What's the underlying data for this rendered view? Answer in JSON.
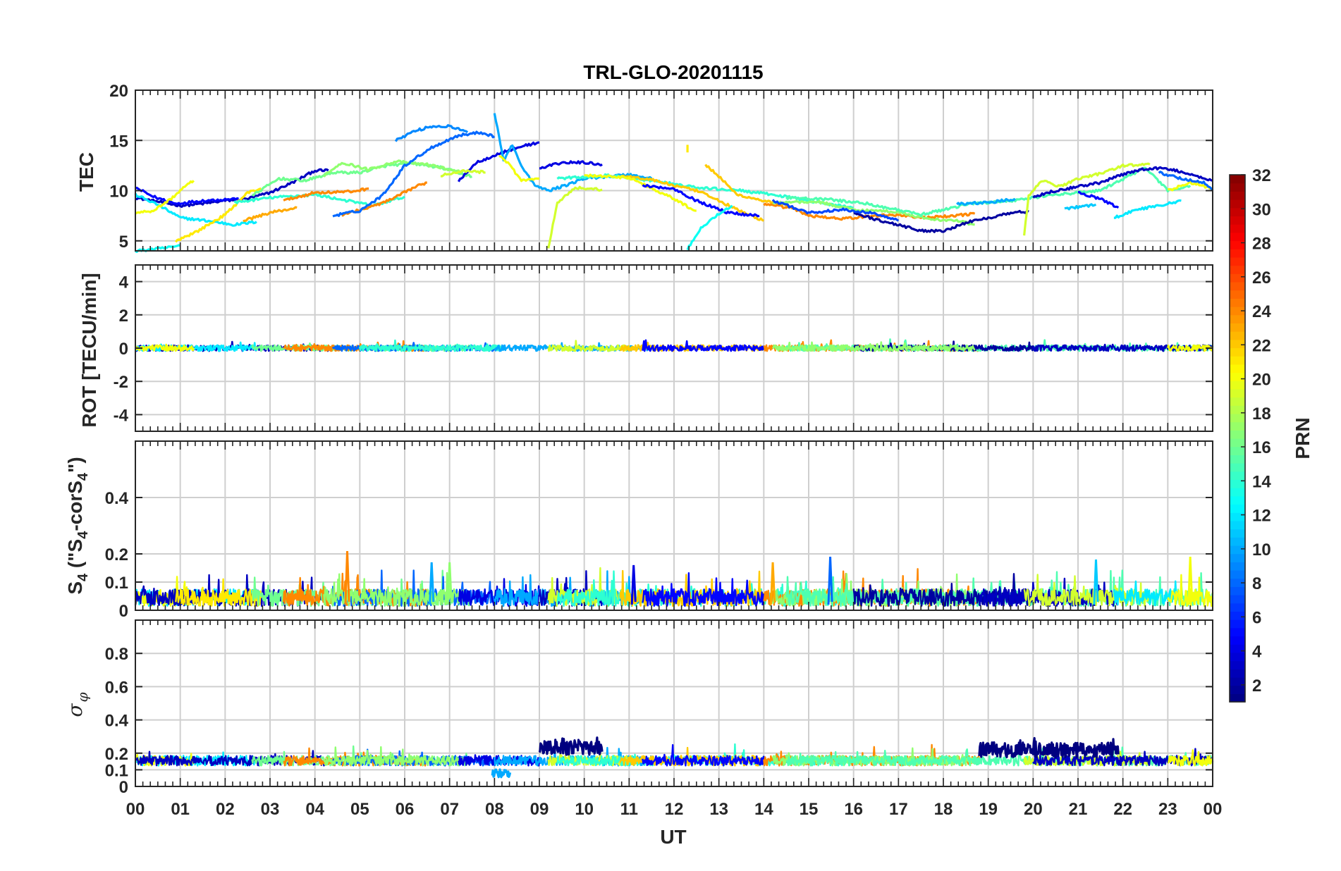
{
  "chart_data": {
    "type": "line",
    "title": "TRL-GLO-20201115",
    "xlabel": "UT",
    "x_ticks": [
      "00",
      "01",
      "02",
      "03",
      "04",
      "05",
      "06",
      "07",
      "08",
      "09",
      "10",
      "11",
      "12",
      "13",
      "14",
      "15",
      "16",
      "17",
      "18",
      "19",
      "20",
      "21",
      "22",
      "23",
      "00"
    ],
    "xlim": [
      0,
      24
    ],
    "panels": [
      {
        "id": "tec",
        "ylabel": "TEC",
        "ylim": [
          4,
          20
        ],
        "yticks": [
          5,
          10,
          15,
          20
        ],
        "series_summary": "GLONASS PRN TEC arcs, roughly 4-17 TECU, peaking near 15-16.5 TECU between 06 and 08 UT and minimum near 6-8 TECU around 17-18 UT",
        "reference_points": [
          {
            "prn": 3,
            "points": [
              [
                0,
                9.3
              ],
              [
                1,
                8.5
              ],
              [
                2,
                9.0
              ],
              [
                3,
                9.8
              ],
              [
                4,
                12.0
              ]
            ]
          },
          {
            "prn": 9,
            "points": [
              [
                6,
                15.5
              ],
              [
                6.5,
                16.3
              ],
              [
                7.2,
                16.2
              ]
            ]
          },
          {
            "prn": 10,
            "points": [
              [
                5,
                8.0
              ],
              [
                6,
                12.5
              ],
              [
                7.2,
                15.5
              ],
              [
                7.8,
                15.8
              ]
            ]
          },
          {
            "prn": 4,
            "points": [
              [
                7,
                11.0
              ],
              [
                8,
                13.5
              ],
              [
                9,
                14.8
              ]
            ]
          },
          {
            "prn": 22,
            "points": [
              [
                10.8,
                11.5
              ],
              [
                12,
                10.5
              ],
              [
                13,
                9.0
              ],
              [
                14,
                7.0
              ]
            ]
          },
          {
            "prn": 2,
            "points": [
              [
                16,
                7.5
              ],
              [
                17,
                6.5
              ],
              [
                18,
                6.0
              ],
              [
                19.5,
                7.8
              ]
            ]
          },
          {
            "prn": 20,
            "points": [
              [
                20,
                10.5
              ],
              [
                21,
                11.5
              ],
              [
                22,
                12.5
              ],
              [
                22.6,
                12.6
              ]
            ]
          }
        ]
      },
      {
        "id": "rot",
        "ylabel": "ROT [TECU/min]",
        "ylim": [
          -5,
          5
        ],
        "yticks": [
          -4,
          -2,
          0,
          2,
          4
        ],
        "series_summary": "ROT values near 0 for all PRNs, within about ±0.5 TECU/min"
      },
      {
        "id": "s4",
        "ylabel_main": "S",
        "ylabel_sub1": "4",
        "ylabel_mid": " (\"S",
        "ylabel_sub2": "4",
        "ylabel_mid2": "-corS",
        "ylabel_sub3": "4",
        "ylabel_end": "\")",
        "ylim": [
          0,
          0.6
        ],
        "yticks": [
          0,
          0.1,
          0.2,
          0.4
        ],
        "ytick_labels": [
          "0",
          "0.1",
          "0.2",
          "0.4"
        ],
        "series_summary": "S4 mostly 0.02-0.12, occasional spikes up to ~0.21 (PRN 24 near 04.7 UT) and ~0.19 (near 15.5 UT)"
      },
      {
        "id": "sigma",
        "ylabel_symbol": "σ",
        "ylabel_sub": "φ",
        "ylim": [
          0,
          1
        ],
        "yticks": [
          0,
          0.1,
          0.2,
          0.4,
          0.6,
          0.8
        ],
        "ytick_labels": [
          "0",
          "0.1",
          "0.2",
          "0.4",
          "0.6",
          "0.8"
        ],
        "series_summary": "Sigma-phi mostly 0.12-0.2, PRN 2 enhanced to ~0.25-0.3 during 09-10.4 UT and 18.8-21.9 UT, dip near 08 UT to ~0.05"
      }
    ],
    "colorbar": {
      "label": "PRN",
      "range": [
        1,
        32
      ],
      "ticks": [
        "2",
        "4",
        "6",
        "8",
        "10",
        "12",
        "14",
        "16",
        "18",
        "20",
        "22",
        "24",
        "26",
        "28",
        "30",
        "32"
      ],
      "colormap": "jet",
      "colors": [
        "#00008F",
        "#0000C8",
        "#0010FF",
        "#0060FF",
        "#00B0FF",
        "#10FFEF",
        "#60FF9F",
        "#B0FF4F",
        "#FFEF00",
        "#FF9F00",
        "#FF5000",
        "#FF0000",
        "#B00000",
        "#800000"
      ]
    }
  }
}
